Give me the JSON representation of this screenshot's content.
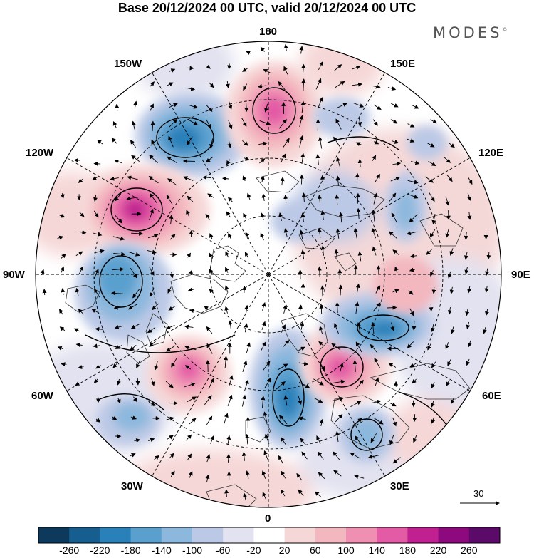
{
  "title": "Base 20/12/2024 00 UTC, valid 20/12/2024 00 UTC",
  "brand": {
    "name": "MODES",
    "mark": "©"
  },
  "map_labels": {
    "lon_180": "180",
    "lon_150w": "150W",
    "lon_150e": "150E",
    "lon_120w": "120W",
    "lon_120e": "120E",
    "lon_90w": "90W",
    "lon_90e": "90E",
    "lon_60w": "60W",
    "lon_60e": "60E",
    "lon_30w": "30W",
    "lon_30e": "30E",
    "lon_0": "0"
  },
  "reference_vector": {
    "label": "30"
  },
  "colorbar": {
    "tick_labels": [
      "-260",
      "-220",
      "-180",
      "-140",
      "-100",
      "-60",
      "-20",
      "20",
      "60",
      "100",
      "140",
      "180",
      "220",
      "260"
    ],
    "colors": [
      "#0d3a5c",
      "#155e8f",
      "#2a80b9",
      "#5aa0cf",
      "#8db8dd",
      "#bcc9e6",
      "#e2e2f0",
      "#ffffff",
      "#f6d7d7",
      "#f3b7bf",
      "#ef8fb2",
      "#e35aa5",
      "#c02090",
      "#8c0a7d",
      "#5c0a6a"
    ]
  },
  "anomalies": [
    {
      "name": "anomaly-aleutian-negative",
      "value": -220
    },
    {
      "name": "anomaly-bering-positive",
      "value": 160
    },
    {
      "name": "anomaly-alaska-gulf-positive",
      "value": 230
    },
    {
      "name": "anomaly-hudson-negative",
      "value": -160
    },
    {
      "name": "anomaly-north-atlantic-positive",
      "value": 180
    },
    {
      "name": "anomaly-greenland-sea-negative",
      "value": -200
    },
    {
      "name": "anomaly-scandinavia-positive",
      "value": 200
    },
    {
      "name": "anomaly-west-siberia-negative",
      "value": -190
    },
    {
      "name": "anomaly-mediterranean-negative",
      "value": -140
    },
    {
      "name": "anomaly-east-siberia-negative",
      "value": -120
    },
    {
      "name": "anomaly-ne-pacific-negative",
      "value": -100
    },
    {
      "name": "anomaly-central-asia-positive",
      "value": 60
    }
  ]
}
